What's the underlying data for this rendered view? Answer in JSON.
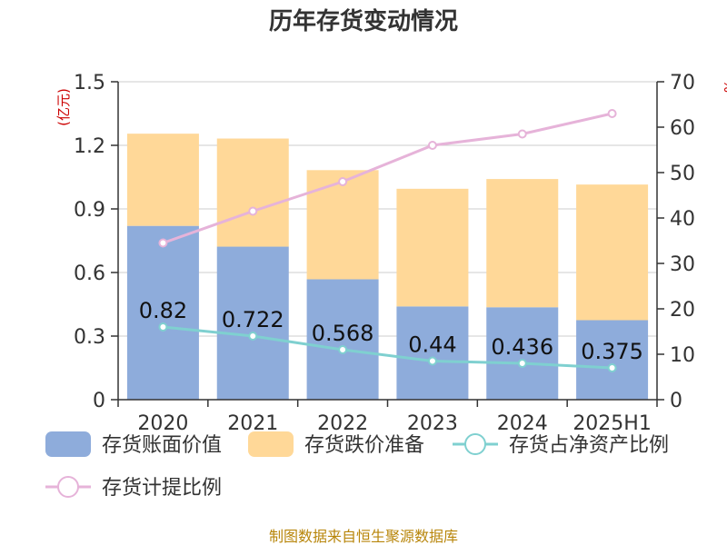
{
  "chart_data": {
    "type": "bar",
    "title": "历年存货变动情况",
    "left_unit": "(亿元)",
    "right_unit": "%",
    "categories": [
      "2020",
      "2021",
      "2022",
      "2023",
      "2024",
      "2025H1"
    ],
    "y_left": {
      "min": 0,
      "max": 1.5,
      "ticks": [
        "0",
        "0.3",
        "0.6",
        "0.9",
        "1.2",
        "1.5"
      ]
    },
    "y_right": {
      "min": 0,
      "max": 70,
      "ticks": [
        "0",
        "10",
        "20",
        "30",
        "40",
        "50",
        "60",
        "70"
      ]
    },
    "bar_series": [
      {
        "name": "存货账面价值",
        "color": "#8eacdb",
        "values": [
          0.82,
          0.722,
          0.568,
          0.44,
          0.436,
          0.375
        ],
        "labels": [
          "0.82",
          "0.722",
          "0.568",
          "0.44",
          "0.436",
          "0.375"
        ]
      },
      {
        "name": "存货跌价准备",
        "color": "#ffd898",
        "values": [
          0.435,
          0.51,
          0.515,
          0.555,
          0.605,
          0.64
        ]
      }
    ],
    "line_series": [
      {
        "name": "存货占净资产比例",
        "color": "#7fd0d0",
        "axis": "right",
        "values": [
          16,
          14,
          11,
          8.5,
          8,
          7
        ]
      },
      {
        "name": "存货计提比例",
        "color": "#e6b3d9",
        "axis": "right",
        "values": [
          34.5,
          41.5,
          48,
          56,
          58.5,
          63
        ]
      }
    ],
    "grid": true,
    "legend_position": "bottom"
  },
  "source": "制图数据来自恒生聚源数据库"
}
